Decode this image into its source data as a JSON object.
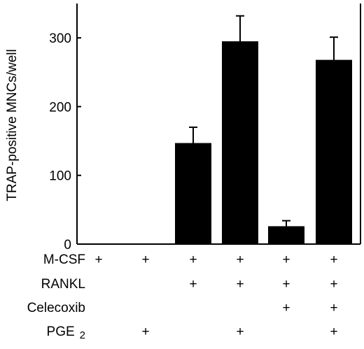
{
  "chart_data": {
    "type": "bar",
    "ylabel": "TRAP-positive MNCs/well",
    "ylim": [
      0,
      350
    ],
    "yticks": [
      0,
      100,
      200,
      300
    ],
    "grid": false,
    "bar_color": "#000000",
    "values": [
      1,
      1,
      147,
      295,
      26,
      268
    ],
    "errors": [
      0,
      0,
      23,
      37,
      8,
      33
    ],
    "conditions": [
      {
        "label": "M-CSF",
        "marks": [
          "+",
          "+",
          "+",
          "+",
          "+",
          "+"
        ]
      },
      {
        "label": "RANKL",
        "marks": [
          "",
          "",
          "+",
          "+",
          "+",
          "+"
        ]
      },
      {
        "label": "Celecoxib",
        "marks": [
          "",
          "",
          "",
          "",
          "+",
          "+"
        ]
      },
      {
        "label": "PGE",
        "label_sub": "2",
        "marks": [
          "",
          "+",
          "",
          "+",
          "",
          "+"
        ]
      }
    ]
  }
}
